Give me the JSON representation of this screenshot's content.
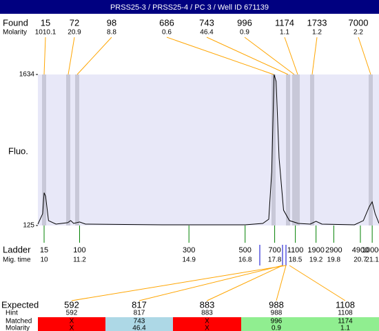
{
  "title": "PRSS25-3 / PRSS25-4 / PC 3 / Well ID 671139",
  "found": {
    "label": "Found",
    "molarity_label": "Molarity",
    "sizes": [
      15,
      72,
      98,
      686,
      743,
      996,
      1174,
      1733,
      7000
    ],
    "molarity": [
      1010.1,
      20.9,
      8.8,
      0.6,
      46.4,
      0.9,
      1.1,
      1.2,
      2.2
    ]
  },
  "chart_data": {
    "type": "line",
    "y_label": "Fluo.",
    "x": [
      9.79,
      9.95,
      10.0,
      10.05,
      10.15,
      10.4,
      10.8,
      10.9,
      11.0,
      11.2,
      11.4,
      14.0,
      16.8,
      17.4,
      17.6,
      17.7,
      17.78,
      17.85,
      17.95,
      18.1,
      18.3,
      18.6,
      19.0,
      19.2,
      19.4,
      20.5,
      20.8,
      21.0,
      21.1,
      21.2,
      21.33
    ],
    "values": [
      139,
      243,
      452,
      417,
      174,
      139,
      153,
      174,
      146,
      160,
      139,
      132,
      132,
      146,
      188,
      660,
      1634,
      1565,
      800,
      278,
      174,
      146,
      139,
      167,
      139,
      132,
      174,
      313,
      361,
      243,
      146
    ],
    "color": "#000000",
    "xlim": [
      9.79,
      21.33
    ],
    "ylim": [
      125,
      1634
    ],
    "yticks": [
      125,
      1634
    ]
  },
  "ladder": {
    "label": "Ladder",
    "time_label": "Mig. time",
    "sizes": [
      15,
      100,
      300,
      500,
      700,
      1100,
      1900,
      2900,
      4900,
      10000
    ],
    "times": [
      10,
      11.2,
      14.9,
      16.8,
      17.8,
      18.5,
      19.2,
      19.8,
      20.7,
      21.1
    ]
  },
  "expected": {
    "labels": [
      "Expected",
      "Hint",
      "Matched",
      "Molarity"
    ],
    "expected": [
      592,
      817,
      883,
      988,
      1108
    ],
    "hint": [
      592,
      817,
      883,
      988,
      1108
    ],
    "matched": [
      "X",
      "743",
      "X",
      "996",
      "1174"
    ],
    "molarity": [
      "X",
      "46.4",
      "X",
      "0.9",
      "1.1"
    ],
    "colors": [
      "#ff0000",
      "#add8e6",
      "#ff0000",
      "#90ee90",
      "#90ee90"
    ]
  }
}
